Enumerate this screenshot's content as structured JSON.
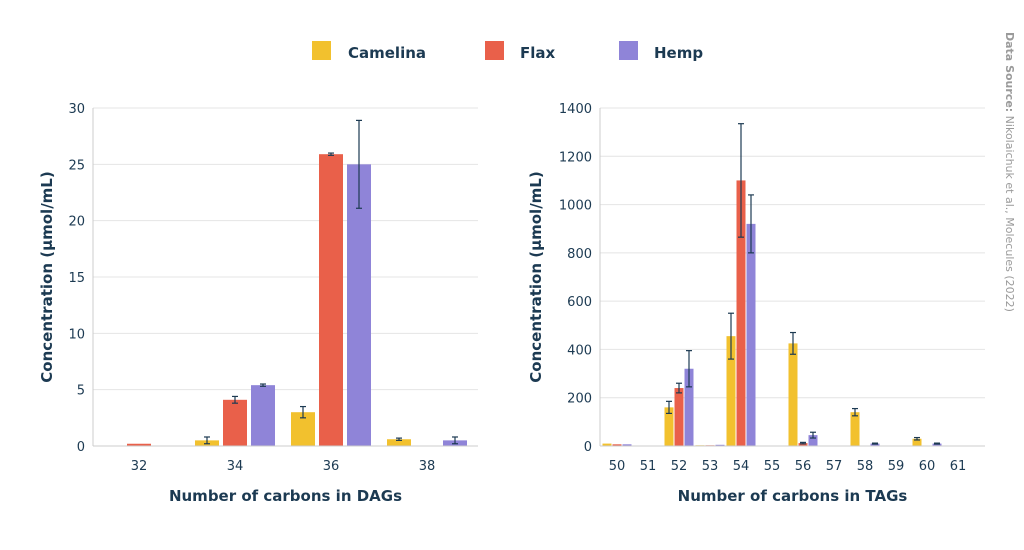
{
  "legend": {
    "items": [
      {
        "label": "Camelina",
        "color": "#f2c12e"
      },
      {
        "label": "Flax",
        "color": "#e9604a"
      },
      {
        "label": "Hemp",
        "color": "#8f84d8"
      }
    ]
  },
  "source": {
    "bold": "Data Source:",
    "text": " Nikolaichuk et al., Molecules (2022)"
  },
  "chart_data": [
    {
      "type": "bar",
      "title": "",
      "xlabel": "Number of carbons in DAGs",
      "ylabel": "Concentration (µmol/mL)",
      "ylim": [
        0,
        30
      ],
      "yticks": [
        "0",
        "5",
        "10",
        "15",
        "20",
        "25",
        "30"
      ],
      "categories": [
        "32",
        "34",
        "36",
        "38"
      ],
      "series": [
        {
          "name": "Camelina",
          "values": [
            0,
            0.5,
            3.0,
            0.6
          ],
          "errors": [
            0,
            0.3,
            0.5,
            0.1
          ]
        },
        {
          "name": "Flax",
          "values": [
            0.2,
            4.1,
            25.9,
            0
          ],
          "errors": [
            0,
            0.3,
            0.1,
            0
          ]
        },
        {
          "name": "Hemp",
          "values": [
            0,
            5.4,
            25.0,
            0.5
          ],
          "errors": [
            0,
            0.1,
            3.9,
            0.3
          ]
        }
      ]
    },
    {
      "type": "bar",
      "title": "",
      "xlabel": "Number of carbons in TAGs",
      "ylabel": "Concentration (µmol/mL)",
      "ylim": [
        0,
        1400
      ],
      "yticks": [
        "0",
        "200",
        "400",
        "600",
        "800",
        "1000",
        "1200",
        "1400"
      ],
      "categories": [
        "50",
        "51",
        "52",
        "53",
        "54",
        "55",
        "56",
        "57",
        "58",
        "59",
        "60",
        "61"
      ],
      "series": [
        {
          "name": "Camelina",
          "values": [
            10,
            0,
            160,
            3,
            455,
            0,
            425,
            0,
            140,
            0,
            30,
            0
          ],
          "errors": [
            0,
            0,
            25,
            0,
            95,
            0,
            45,
            0,
            15,
            0,
            5,
            0
          ]
        },
        {
          "name": "Flax",
          "values": [
            7,
            0,
            240,
            3,
            1100,
            0,
            12,
            0,
            2,
            0,
            2,
            0
          ],
          "errors": [
            0,
            0,
            20,
            0,
            235,
            0,
            3,
            0,
            0,
            0,
            0,
            0
          ]
        },
        {
          "name": "Hemp",
          "values": [
            7,
            0,
            320,
            5,
            920,
            0,
            45,
            0,
            10,
            0,
            10,
            0
          ],
          "errors": [
            0,
            0,
            75,
            0,
            120,
            0,
            12,
            0,
            2,
            0,
            2,
            0
          ]
        }
      ]
    }
  ]
}
